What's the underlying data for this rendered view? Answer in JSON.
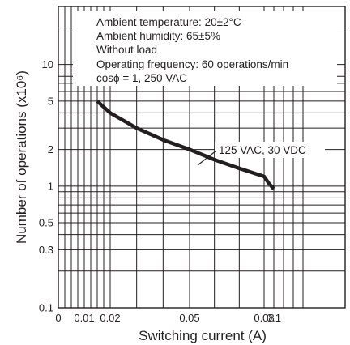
{
  "chart_data": {
    "type": "line",
    "title": "",
    "xlabel": "Switching current (A)",
    "ylabel": "Number of operations  (x10⁶)",
    "x_tick_labels": [
      {
        "value": 0,
        "label": "0"
      },
      {
        "value": 0.01,
        "label": "0.01"
      },
      {
        "value": 0.02,
        "label": "0.02"
      },
      {
        "value": 0.05,
        "label": "0.05"
      },
      {
        "value": 0.08,
        "label": "0.08"
      },
      {
        "value": 0.1,
        "label": "0.1"
      }
    ],
    "y_scale": "log",
    "ylim": [
      0.1,
      30
    ],
    "y_tick_labels": [
      {
        "value": 0.1,
        "label": "0.1"
      },
      {
        "value": 0.3,
        "label": "0.3"
      },
      {
        "value": 0.5,
        "label": "0.5"
      },
      {
        "value": 1,
        "label": "1"
      },
      {
        "value": 2,
        "label": "2"
      },
      {
        "value": 5,
        "label": "5"
      },
      {
        "value": 10,
        "label": "10"
      }
    ],
    "grid": true,
    "conditions": [
      "Ambient temperature: 20±2°C",
      "Ambient humidity: 65±5%",
      "Without load",
      "Operating frequency: 60 operations/min",
      "cosϕ = 1, 250 VAC"
    ],
    "series": [
      {
        "name": "125 VAC, 30 VDC",
        "x": [
          0.015,
          0.02,
          0.03,
          0.04,
          0.05,
          0.06,
          0.07,
          0.08,
          0.09,
          0.1
        ],
        "values": [
          5.0,
          4.0,
          3.0,
          2.4,
          2.0,
          1.65,
          1.4,
          1.2,
          1.05,
          0.95
        ]
      }
    ]
  }
}
